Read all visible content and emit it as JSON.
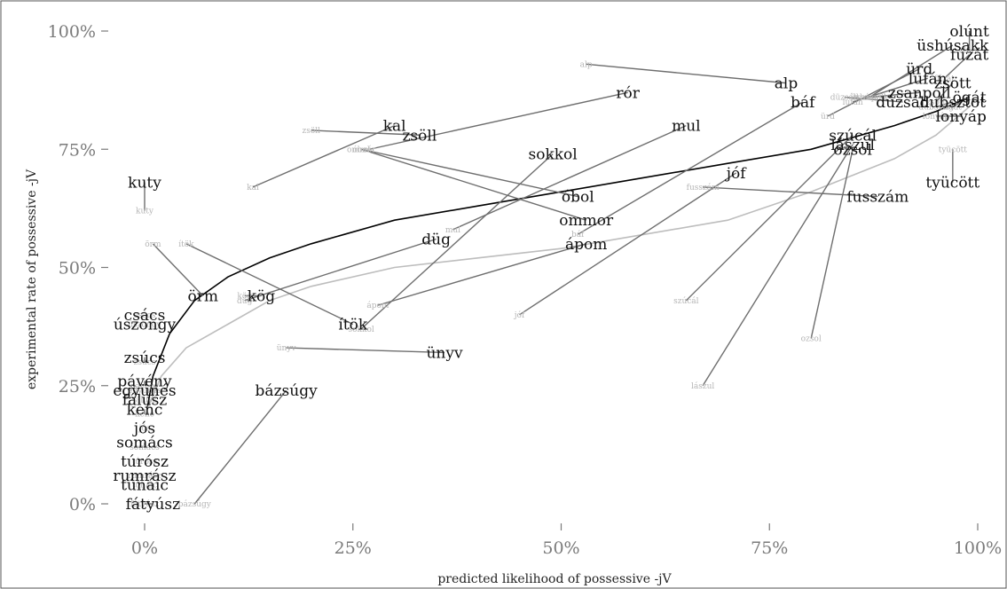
{
  "chart_data": {
    "type": "scatter",
    "xlabel": "predicted likelihood of possessive -jV",
    "ylabel": "experimental rate of possessive -jV",
    "xlim": [
      -0.05,
      1.02
    ],
    "ylim": [
      -0.05,
      1.02
    ],
    "x_ticks": [
      0,
      0.25,
      0.5,
      0.75,
      1.0
    ],
    "x_tick_labels": [
      "0%",
      "25%",
      "50%",
      "75%",
      "100%"
    ],
    "y_ticks": [
      0,
      0.25,
      0.5,
      0.75,
      1.0
    ],
    "y_tick_labels": [
      "0%",
      "25%",
      "50%",
      "75%",
      "100%"
    ],
    "grid": false,
    "fits": [
      {
        "color": "#000000",
        "points": [
          [
            0.003,
            0.2
          ],
          [
            0.01,
            0.27
          ],
          [
            0.03,
            0.36
          ],
          [
            0.06,
            0.43
          ],
          [
            0.1,
            0.48
          ],
          [
            0.15,
            0.52
          ],
          [
            0.2,
            0.55
          ],
          [
            0.3,
            0.6
          ],
          [
            0.4,
            0.63
          ],
          [
            0.5,
            0.66
          ],
          [
            0.6,
            0.69
          ],
          [
            0.7,
            0.72
          ],
          [
            0.8,
            0.75
          ],
          [
            0.9,
            0.8
          ],
          [
            0.95,
            0.83
          ],
          [
            0.99,
            0.86
          ]
        ]
      },
      {
        "color": "#bdbdbd",
        "points": [
          [
            0.003,
            0.2
          ],
          [
            0.02,
            0.27
          ],
          [
            0.05,
            0.33
          ],
          [
            0.1,
            0.38
          ],
          [
            0.15,
            0.43
          ],
          [
            0.2,
            0.46
          ],
          [
            0.3,
            0.5
          ],
          [
            0.4,
            0.52
          ],
          [
            0.5,
            0.54
          ],
          [
            0.6,
            0.57
          ],
          [
            0.7,
            0.6
          ],
          [
            0.8,
            0.66
          ],
          [
            0.9,
            0.73
          ],
          [
            0.95,
            0.78
          ],
          [
            0.99,
            0.84
          ]
        ]
      }
    ],
    "points": [
      {
        "label": "kuty",
        "xp": 0.0,
        "yp": 0.62,
        "xe": 0.0,
        "ye": 0.68
      },
      {
        "label": "kal",
        "xp": 0.13,
        "yp": 0.67,
        "xe": 0.3,
        "ye": 0.8
      },
      {
        "label": "zsöll",
        "xp": 0.2,
        "yp": 0.79,
        "xe": 0.33,
        "ye": 0.78
      },
      {
        "label": "alp",
        "xp": 0.53,
        "yp": 0.93,
        "xe": 0.77,
        "ye": 0.89
      },
      {
        "label": "rór",
        "xp": 0.27,
        "yp": 0.75,
        "xe": 0.58,
        "ye": 0.87
      },
      {
        "label": "báf",
        "xp": 0.52,
        "yp": 0.57,
        "xe": 0.79,
        "ye": 0.85
      },
      {
        "label": "mul",
        "xp": 0.37,
        "yp": 0.58,
        "xe": 0.65,
        "ye": 0.8
      },
      {
        "label": "sokkol",
        "xp": 0.26,
        "yp": 0.37,
        "xe": 0.49,
        "ye": 0.74
      },
      {
        "label": "óbol",
        "xp": 0.26,
        "yp": 0.75,
        "xe": 0.52,
        "ye": 0.65
      },
      {
        "label": "ommor",
        "xp": 0.26,
        "yp": 0.75,
        "xe": 0.53,
        "ye": 0.6
      },
      {
        "label": "düg",
        "xp": 0.12,
        "yp": 0.43,
        "xe": 0.35,
        "ye": 0.56
      },
      {
        "label": "ápom",
        "xp": 0.28,
        "yp": 0.42,
        "xe": 0.53,
        "ye": 0.55
      },
      {
        "label": "jóf",
        "xp": 0.45,
        "yp": 0.4,
        "xe": 0.71,
        "ye": 0.7
      },
      {
        "label": "szúcál",
        "xp": 0.65,
        "yp": 0.43,
        "xe": 0.85,
        "ye": 0.78
      },
      {
        "label": "lászul",
        "xp": 0.67,
        "yp": 0.25,
        "xe": 0.85,
        "ye": 0.76
      },
      {
        "label": "ozsol",
        "xp": 0.8,
        "yp": 0.35,
        "xe": 0.85,
        "ye": 0.75
      },
      {
        "label": "fusszám",
        "xp": 0.67,
        "yp": 0.67,
        "xe": 0.88,
        "ye": 0.65
      },
      {
        "label": "tyücött",
        "xp": 0.97,
        "yp": 0.75,
        "xe": 0.97,
        "ye": 0.68
      },
      {
        "label": "lonyáp",
        "xp": 0.95,
        "yp": 0.82,
        "xe": 0.98,
        "ye": 0.82
      },
      {
        "label": "olúnt",
        "xp": 0.99,
        "yp": 0.96,
        "xe": 0.99,
        "ye": 1.0
      },
      {
        "label": "üshúsakk",
        "xp": 0.87,
        "yp": 0.86,
        "xe": 0.97,
        "ye": 0.97
      },
      {
        "label": "fűzát",
        "xp": 0.96,
        "yp": 0.9,
        "xe": 0.99,
        "ye": 0.95
      },
      {
        "label": "ürd",
        "xp": 0.82,
        "yp": 0.82,
        "xe": 0.93,
        "ye": 0.92
      },
      {
        "label": "lufán",
        "xp": 0.85,
        "yp": 0.85,
        "xe": 0.94,
        "ye": 0.9
      },
      {
        "label": "zsött",
        "xp": 0.95,
        "yp": 0.85,
        "xe": 0.97,
        "ye": 0.89
      },
      {
        "label": "zsanpoll",
        "xp": 0.87,
        "yp": 0.86,
        "xe": 0.93,
        "ye": 0.87
      },
      {
        "label": "düzsáll",
        "xp": 0.84,
        "yp": 0.86,
        "xe": 0.91,
        "ye": 0.85
      },
      {
        "label": "ögát",
        "xp": 0.97,
        "yp": 0.84,
        "xe": 0.99,
        "ye": 0.86
      },
      {
        "label": "dubsztot",
        "xp": 0.95,
        "yp": 0.84,
        "xe": 0.97,
        "ye": 0.85
      },
      {
        "label": "ítök",
        "xp": 0.05,
        "yp": 0.55,
        "xe": 0.25,
        "ye": 0.38
      },
      {
        "label": "kög",
        "xp": 0.12,
        "yp": 0.44,
        "xe": 0.14,
        "ye": 0.44
      },
      {
        "label": "örm",
        "xp": 0.01,
        "yp": 0.55,
        "xe": 0.07,
        "ye": 0.44
      },
      {
        "label": "ünyv",
        "xp": 0.17,
        "yp": 0.33,
        "xe": 0.36,
        "ye": 0.32
      },
      {
        "label": "bázsúgy",
        "xp": 0.06,
        "yp": 0.0,
        "xe": 0.17,
        "ye": 0.24
      },
      {
        "label": "csács",
        "xp": 0.0,
        "yp": 0.4,
        "xe": 0.0,
        "ye": 0.4
      },
      {
        "label": "úszongy",
        "xp": 0.0,
        "yp": 0.38,
        "xe": 0.0,
        "ye": 0.38
      },
      {
        "label": "zsúcs",
        "xp": 0.0,
        "yp": 0.3,
        "xe": 0.0,
        "ye": 0.31
      },
      {
        "label": "pávény",
        "xp": 0.0,
        "yp": 0.25,
        "xe": 0.0,
        "ye": 0.26
      },
      {
        "label": "együnés",
        "xp": 0.0,
        "yp": 0.24,
        "xe": 0.0,
        "ye": 0.24
      },
      {
        "label": "fálusz",
        "xp": 0.0,
        "yp": 0.22,
        "xe": 0.0,
        "ye": 0.22
      },
      {
        "label": "kenc",
        "xp": 0.0,
        "yp": 0.19,
        "xe": 0.0,
        "ye": 0.2
      },
      {
        "label": "jós",
        "xp": 0.0,
        "yp": 0.16,
        "xe": 0.0,
        "ye": 0.16
      },
      {
        "label": "somács",
        "xp": 0.0,
        "yp": 0.12,
        "xe": 0.0,
        "ye": 0.13
      },
      {
        "label": "túrósz",
        "xp": 0.0,
        "yp": 0.09,
        "xe": 0.0,
        "ye": 0.09
      },
      {
        "label": "rumrász",
        "xp": 0.0,
        "yp": 0.06,
        "xe": 0.0,
        "ye": 0.06
      },
      {
        "label": "túnáic",
        "xp": 0.0,
        "yp": 0.04,
        "xe": 0.0,
        "ye": 0.04
      },
      {
        "label": "fátyúsz",
        "xp": 0.0,
        "yp": 0.0,
        "xe": 0.01,
        "ye": 0.0
      }
    ]
  }
}
